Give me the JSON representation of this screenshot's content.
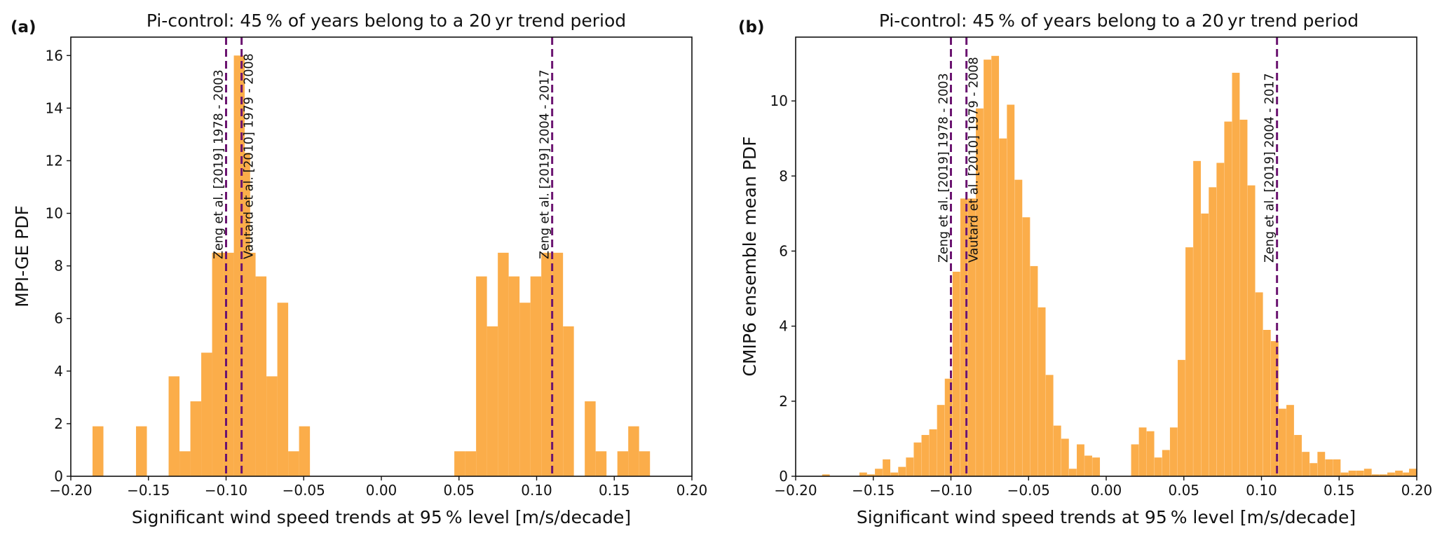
{
  "chart_data": [
    {
      "panel_label": "(a)",
      "type": "bar",
      "title": "Pi-control: 45 % of years belong to a 20 yr trend period",
      "xlabel": "Significant wind speed trends at 95 % level [m/s/decade]",
      "ylabel": "MPI-GE PDF",
      "xlim": [
        -0.2,
        0.2
      ],
      "ylim": [
        0,
        16.7
      ],
      "xticks": [
        "−0.20",
        "−0.15",
        "−0.10",
        "−0.05",
        "0.00",
        "0.05",
        "0.10",
        "0.15",
        "0.20"
      ],
      "xtick_values": [
        -0.2,
        -0.15,
        -0.1,
        -0.05,
        0,
        0.05,
        0.1,
        0.15,
        0.2
      ],
      "yticks": [
        "0",
        "2",
        "4",
        "6",
        "8",
        "10",
        "12",
        "14",
        "16"
      ],
      "ytick_values": [
        0,
        2,
        4,
        6,
        8,
        10,
        12,
        14,
        16
      ],
      "bin_width": 0.007,
      "bins": [
        {
          "x": -0.1825,
          "y": 1.9
        },
        {
          "x": -0.1545,
          "y": 1.9
        },
        {
          "x": -0.1335,
          "y": 3.8
        },
        {
          "x": -0.1265,
          "y": 0.95
        },
        {
          "x": -0.1195,
          "y": 2.85
        },
        {
          "x": -0.1125,
          "y": 4.7
        },
        {
          "x": -0.1055,
          "y": 8.5
        },
        {
          "x": -0.0985,
          "y": 8.5
        },
        {
          "x": -0.0915,
          "y": 16.0
        },
        {
          "x": -0.088,
          "y": 12.3
        },
        {
          "x": -0.0845,
          "y": 8.5
        },
        {
          "x": -0.0775,
          "y": 7.6
        },
        {
          "x": -0.0705,
          "y": 3.8
        },
        {
          "x": -0.0635,
          "y": 6.6
        },
        {
          "x": -0.0565,
          "y": 0.95
        },
        {
          "x": -0.0495,
          "y": 1.9
        },
        {
          "x": 0.0505,
          "y": 0.95
        },
        {
          "x": 0.0575,
          "y": 0.95
        },
        {
          "x": 0.0645,
          "y": 7.6
        },
        {
          "x": 0.0715,
          "y": 5.7
        },
        {
          "x": 0.0785,
          "y": 8.5
        },
        {
          "x": 0.0855,
          "y": 7.6
        },
        {
          "x": 0.0925,
          "y": 6.6
        },
        {
          "x": 0.0995,
          "y": 7.6
        },
        {
          "x": 0.1065,
          "y": 8.5
        },
        {
          "x": 0.1135,
          "y": 8.5
        },
        {
          "x": 0.1205,
          "y": 5.7
        },
        {
          "x": 0.1345,
          "y": 2.85
        },
        {
          "x": 0.1415,
          "y": 0.95
        },
        {
          "x": 0.1555,
          "y": 0.95
        },
        {
          "x": 0.1625,
          "y": 1.9
        },
        {
          "x": 0.1695,
          "y": 0.95
        }
      ],
      "reference_lines": [
        {
          "x": -0.1,
          "label": "Zeng et al. [2019] 1978 - 2003",
          "side": "left"
        },
        {
          "x": -0.09,
          "label": "Vautard et al. [2010] 1979 - 2008",
          "side": "right"
        },
        {
          "x": 0.11,
          "label": "Zeng et al. [2019] 2004 - 2017",
          "side": "left"
        }
      ],
      "bar_color": "#fbad4a",
      "line_color": "#6b1470"
    },
    {
      "panel_label": "(b)",
      "type": "bar",
      "title": "Pi-control: 45 % of years belong to a 20 yr trend period",
      "xlabel": "Significant wind speed trends at 95 % level [m/s/decade]",
      "ylabel": "CMIP6 ensemble mean PDF",
      "xlim": [
        -0.2,
        0.2
      ],
      "ylim": [
        0,
        11.7
      ],
      "xticks": [
        "−0.20",
        "−0.15",
        "−0.10",
        "−0.05",
        "0.00",
        "0.05",
        "0.10",
        "0.15",
        "0.20"
      ],
      "xtick_values": [
        -0.2,
        -0.15,
        -0.1,
        -0.05,
        0,
        0.05,
        0.1,
        0.15,
        0.2
      ],
      "yticks": [
        "0",
        "2",
        "4",
        "6",
        "8",
        "10"
      ],
      "ytick_values": [
        0,
        2,
        4,
        6,
        8,
        10
      ],
      "bin_width": 0.0049,
      "bins": [
        {
          "x": -0.1805,
          "y": 0.05
        },
        {
          "x": -0.1565,
          "y": 0.1
        },
        {
          "x": -0.1515,
          "y": 0.05
        },
        {
          "x": -0.1465,
          "y": 0.2
        },
        {
          "x": -0.1415,
          "y": 0.45
        },
        {
          "x": -0.1365,
          "y": 0.1
        },
        {
          "x": -0.1315,
          "y": 0.25
        },
        {
          "x": -0.1265,
          "y": 0.5
        },
        {
          "x": -0.1215,
          "y": 0.9
        },
        {
          "x": -0.1165,
          "y": 1.1
        },
        {
          "x": -0.1115,
          "y": 1.25
        },
        {
          "x": -0.1065,
          "y": 1.9
        },
        {
          "x": -0.1015,
          "y": 2.6
        },
        {
          "x": -0.0965,
          "y": 5.45
        },
        {
          "x": -0.0915,
          "y": 7.4
        },
        {
          "x": -0.0865,
          "y": 7.4
        },
        {
          "x": -0.0815,
          "y": 9.8
        },
        {
          "x": -0.0765,
          "y": 11.1
        },
        {
          "x": -0.0715,
          "y": 11.2
        },
        {
          "x": -0.0665,
          "y": 9.0
        },
        {
          "x": -0.0615,
          "y": 9.9
        },
        {
          "x": -0.0565,
          "y": 7.9
        },
        {
          "x": -0.0515,
          "y": 6.9
        },
        {
          "x": -0.0465,
          "y": 5.6
        },
        {
          "x": -0.0415,
          "y": 4.5
        },
        {
          "x": -0.0365,
          "y": 2.7
        },
        {
          "x": -0.0315,
          "y": 1.35
        },
        {
          "x": -0.0265,
          "y": 1.0
        },
        {
          "x": -0.0215,
          "y": 0.2
        },
        {
          "x": -0.0165,
          "y": 0.85
        },
        {
          "x": -0.0115,
          "y": 0.55
        },
        {
          "x": -0.0065,
          "y": 0.5
        },
        {
          "x": 0.0185,
          "y": 0.85
        },
        {
          "x": 0.0235,
          "y": 1.3
        },
        {
          "x": 0.0285,
          "y": 1.2
        },
        {
          "x": 0.0335,
          "y": 0.5
        },
        {
          "x": 0.0385,
          "y": 0.7
        },
        {
          "x": 0.0435,
          "y": 1.3
        },
        {
          "x": 0.0485,
          "y": 3.1
        },
        {
          "x": 0.0535,
          "y": 6.1
        },
        {
          "x": 0.0585,
          "y": 8.4
        },
        {
          "x": 0.0635,
          "y": 7.0
        },
        {
          "x": 0.0685,
          "y": 7.7
        },
        {
          "x": 0.0735,
          "y": 8.35
        },
        {
          "x": 0.0785,
          "y": 9.45
        },
        {
          "x": 0.0835,
          "y": 10.75
        },
        {
          "x": 0.0885,
          "y": 9.5
        },
        {
          "x": 0.0935,
          "y": 7.75
        },
        {
          "x": 0.0985,
          "y": 4.9
        },
        {
          "x": 0.1035,
          "y": 3.9
        },
        {
          "x": 0.1085,
          "y": 3.6
        },
        {
          "x": 0.1135,
          "y": 1.8
        },
        {
          "x": 0.1185,
          "y": 1.9
        },
        {
          "x": 0.1235,
          "y": 1.1
        },
        {
          "x": 0.1285,
          "y": 0.65
        },
        {
          "x": 0.1335,
          "y": 0.35
        },
        {
          "x": 0.1385,
          "y": 0.65
        },
        {
          "x": 0.1435,
          "y": 0.45
        },
        {
          "x": 0.1485,
          "y": 0.45
        },
        {
          "x": 0.1535,
          "y": 0.1
        },
        {
          "x": 0.1585,
          "y": 0.15
        },
        {
          "x": 0.1635,
          "y": 0.15
        },
        {
          "x": 0.1685,
          "y": 0.2
        },
        {
          "x": 0.1735,
          "y": 0.05
        },
        {
          "x": 0.1785,
          "y": 0.05
        },
        {
          "x": 0.1835,
          "y": 0.1
        },
        {
          "x": 0.1885,
          "y": 0.15
        },
        {
          "x": 0.1935,
          "y": 0.1
        },
        {
          "x": 0.1975,
          "y": 0.2
        }
      ],
      "reference_lines": [
        {
          "x": -0.1,
          "label": "Zeng et al. [2019] 1978 - 2003",
          "side": "left"
        },
        {
          "x": -0.09,
          "label": "Vautard et al. [2010] 1979 - 2008",
          "side": "right"
        },
        {
          "x": 0.11,
          "label": "Zeng et al. [2019] 2004 - 2017",
          "side": "left"
        }
      ],
      "bar_color": "#fbad4a",
      "line_color": "#6b1470"
    }
  ]
}
